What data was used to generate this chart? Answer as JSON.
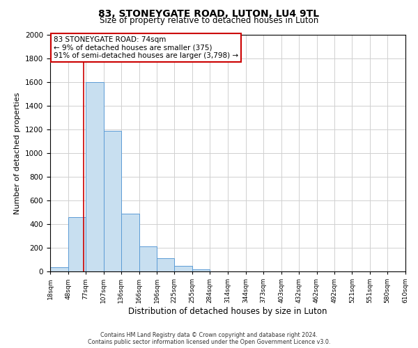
{
  "title": "83, STONEYGATE ROAD, LUTON, LU4 9TL",
  "subtitle": "Size of property relative to detached houses in Luton",
  "xlabel": "Distribution of detached houses by size in Luton",
  "ylabel": "Number of detached properties",
  "bar_values": [
    35,
    460,
    1600,
    1190,
    490,
    210,
    110,
    45,
    20,
    0,
    0,
    0,
    0,
    0,
    0,
    0,
    0,
    0,
    0,
    0
  ],
  "bin_edges": [
    18,
    48,
    77,
    107,
    136,
    166,
    196,
    225,
    255,
    284,
    314,
    344,
    373,
    403,
    432,
    462,
    492,
    521,
    551,
    580,
    610
  ],
  "tick_labels": [
    "18sqm",
    "48sqm",
    "77sqm",
    "107sqm",
    "136sqm",
    "166sqm",
    "196sqm",
    "225sqm",
    "255sqm",
    "284sqm",
    "314sqm",
    "344sqm",
    "373sqm",
    "403sqm",
    "432sqm",
    "462sqm",
    "492sqm",
    "521sqm",
    "551sqm",
    "580sqm",
    "610sqm"
  ],
  "bar_color": "#c8dff0",
  "bar_edge_color": "#5b9bd5",
  "property_line_x": 74,
  "property_line_color": "#cc0000",
  "annotation_text_line1": "83 STONEYGATE ROAD: 74sqm",
  "annotation_text_line2": "← 9% of detached houses are smaller (375)",
  "annotation_text_line3": "91% of semi-detached houses are larger (3,798) →",
  "annotation_box_color": "#ffffff",
  "annotation_box_edge_color": "#cc0000",
  "ylim": [
    0,
    2000
  ],
  "yticks": [
    0,
    200,
    400,
    600,
    800,
    1000,
    1200,
    1400,
    1600,
    1800,
    2000
  ],
  "footer_line1": "Contains HM Land Registry data © Crown copyright and database right 2024.",
  "footer_line2": "Contains public sector information licensed under the Open Government Licence v3.0.",
  "background_color": "#ffffff",
  "grid_color": "#d0d0d0"
}
